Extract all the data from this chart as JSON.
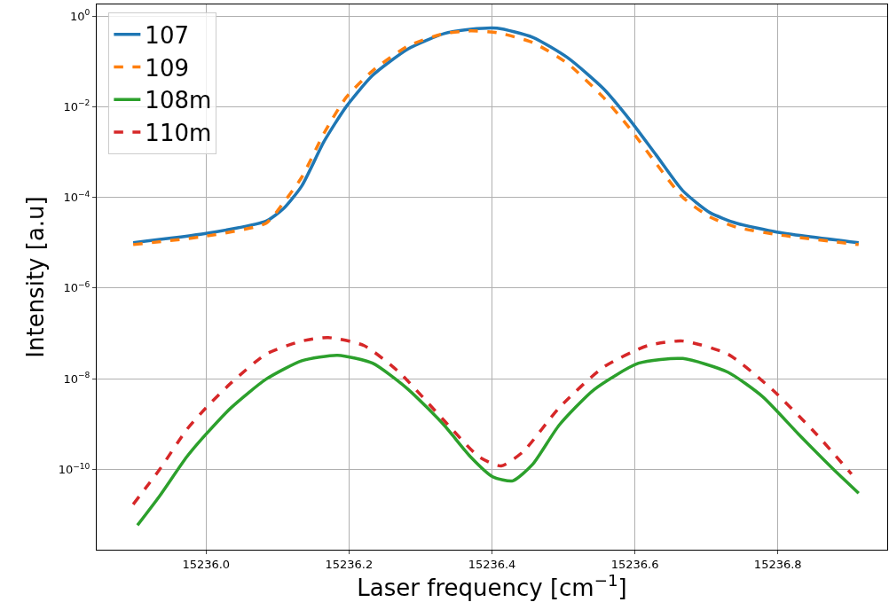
{
  "chart_data": {
    "type": "line",
    "xlabel": "Laser frequency [cm$^{−1}$]",
    "ylabel": "Intensity [a.u]",
    "log": "y",
    "grid": true,
    "legend": "top left",
    "xlim": [
      15235.847,
      15236.953
    ],
    "xticks": [
      {
        "value": 15236.0,
        "label": "15236.0"
      },
      {
        "value": 15236.2,
        "label": "15236.2"
      },
      {
        "value": 15236.4,
        "label": "15236.4"
      },
      {
        "value": 15236.6,
        "label": "15236.6"
      },
      {
        "value": 15236.8,
        "label": "15236.8"
      }
    ],
    "ylim": [
      1.7e-12,
      1.8
    ],
    "yticks": [
      {
        "value": 1,
        "label": "10$^{0}$"
      },
      {
        "value": 0.01,
        "label": "10$^{−2}$"
      },
      {
        "value": 0.0001,
        "label": "10$^{−4}$"
      },
      {
        "value": 1e-06,
        "label": "10$^{−6}$"
      },
      {
        "value": 1e-08,
        "label": "10$^{−8}$"
      },
      {
        "value": 1e-10,
        "label": "10$^{−10}$"
      }
    ],
    "series": [
      {
        "name": "107",
        "color": "#1f77b4",
        "line_style": "solid",
        "x": [
          15235.898,
          15236.0,
          15236.084,
          15236.109,
          15236.134,
          15236.165,
          15236.196,
          15236.233,
          15236.283,
          15236.333,
          15236.37,
          15236.407,
          15236.457,
          15236.506,
          15236.556,
          15236.593,
          15236.63,
          15236.667,
          15236.705,
          15236.742,
          15236.8,
          15236.913
        ],
        "values": [
          1e-05,
          1.6e-05,
          3e-05,
          5.8e-05,
          0.00018,
          0.0017,
          0.01,
          0.049,
          0.19,
          0.41,
          0.51,
          0.54,
          0.34,
          0.12,
          0.025,
          0.0051,
          0.00085,
          0.00014,
          4.6e-05,
          2.7e-05,
          1.7e-05,
          1e-05
        ]
      },
      {
        "name": "109",
        "color": "#ff7f0e",
        "line_style": "dashed",
        "x": [
          15235.898,
          15236.0,
          15236.084,
          15236.109,
          15236.134,
          15236.165,
          15236.196,
          15236.233,
          15236.283,
          15236.333,
          15236.37,
          15236.407,
          15236.457,
          15236.506,
          15236.556,
          15236.593,
          15236.63,
          15236.667,
          15236.705,
          15236.742,
          15236.8,
          15236.913
        ],
        "values": [
          9.1e-06,
          1.4e-05,
          2.7e-05,
          7.9e-05,
          0.00028,
          0.0026,
          0.016,
          0.062,
          0.22,
          0.41,
          0.47,
          0.43,
          0.26,
          0.089,
          0.016,
          0.0033,
          0.00055,
          0.0001,
          3.7e-05,
          2.2e-05,
          1.5e-05,
          9.1e-06
        ]
      },
      {
        "name": "108m",
        "color": "#2ca02c",
        "line_style": "solid",
        "x": [
          15235.904,
          15235.935,
          15235.973,
          15236.0,
          15236.035,
          15236.084,
          15236.134,
          15236.184,
          15236.233,
          15236.283,
          15236.333,
          15236.37,
          15236.401,
          15236.429,
          15236.457,
          15236.494,
          15236.543,
          15236.605,
          15236.667,
          15236.73,
          15236.779,
          15236.829,
          15236.878,
          15236.913
        ],
        "values": [
          5.9e-12,
          2.6e-11,
          1.9e-10,
          6e-10,
          2.3e-09,
          9.8e-09,
          2.5e-08,
          3.3e-08,
          2.2e-08,
          5.8e-09,
          9.5e-10,
          1.9e-10,
          6.9e-11,
          5.6e-11,
          1.3e-10,
          9.5e-10,
          5.8e-09,
          2.2e-08,
          2.8e-08,
          1.4e-08,
          4e-09,
          6e-10,
          1e-10,
          3e-11
        ]
      },
      {
        "name": "110m",
        "color": "#d62728",
        "line_style": "dashed",
        "x": [
          15235.898,
          15235.935,
          15235.973,
          15236.0,
          15236.035,
          15236.084,
          15236.134,
          15236.171,
          15236.221,
          15236.27,
          15236.333,
          15236.382,
          15236.413,
          15236.444,
          15236.494,
          15236.556,
          15236.618,
          15236.667,
          15236.73,
          15236.792,
          15236.854,
          15236.903
        ],
        "values": [
          1.7e-11,
          1e-10,
          7.6e-10,
          2.3e-09,
          8.1e-09,
          3.5e-08,
          6.8e-08,
          8.1e-08,
          5.4e-08,
          1.4e-08,
          1.2e-09,
          1.9e-10,
          1.2e-10,
          2.5e-10,
          2.3e-09,
          1.8e-08,
          5.4e-08,
          6.8e-08,
          3.5e-08,
          5.8e-09,
          6e-10,
          7.9e-11
        ]
      }
    ]
  }
}
